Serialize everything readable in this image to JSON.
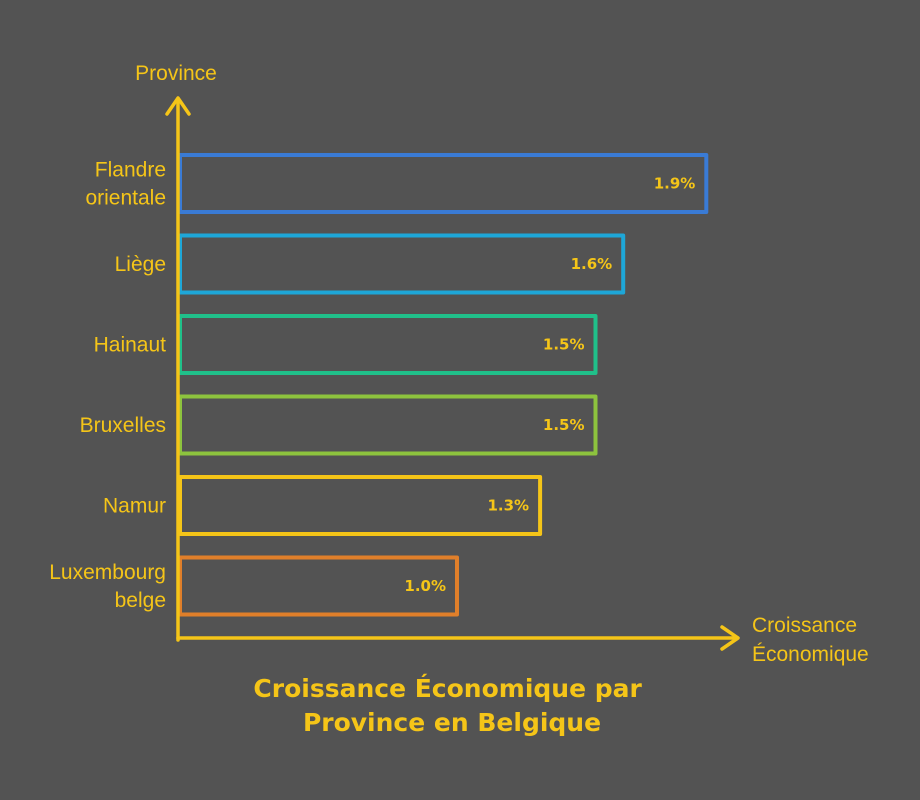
{
  "chart_data": {
    "type": "bar",
    "orientation": "horizontal",
    "title_lines": [
      "Croissance Économique par",
      "Province en Belgique"
    ],
    "ylabel": "Province",
    "xlabel_lines": [
      "Croissance",
      "Économique"
    ],
    "xlim": [
      0,
      2.0
    ],
    "grid": false,
    "categories": [
      {
        "lines": [
          "Flandre",
          "orientale"
        ],
        "value": 1.9,
        "label": "1.9%",
        "color": "#3a7bd5"
      },
      {
        "lines": [
          "Liège"
        ],
        "value": 1.6,
        "label": "1.6%",
        "color": "#1ea7d8"
      },
      {
        "lines": [
          "Hainaut"
        ],
        "value": 1.5,
        "label": "1.5%",
        "color": "#20c08a"
      },
      {
        "lines": [
          "Bruxelles"
        ],
        "value": 1.5,
        "label": "1.5%",
        "color": "#8dc33e"
      },
      {
        "lines": [
          "Namur"
        ],
        "value": 1.3,
        "label": "1.3%",
        "color": "#f5c518"
      },
      {
        "lines": [
          "Luxembourg",
          "belge"
        ],
        "value": 1.0,
        "label": "1.0%",
        "color": "#e07f2a"
      }
    ],
    "axis_color": "#f5c518",
    "background": "#535353"
  }
}
